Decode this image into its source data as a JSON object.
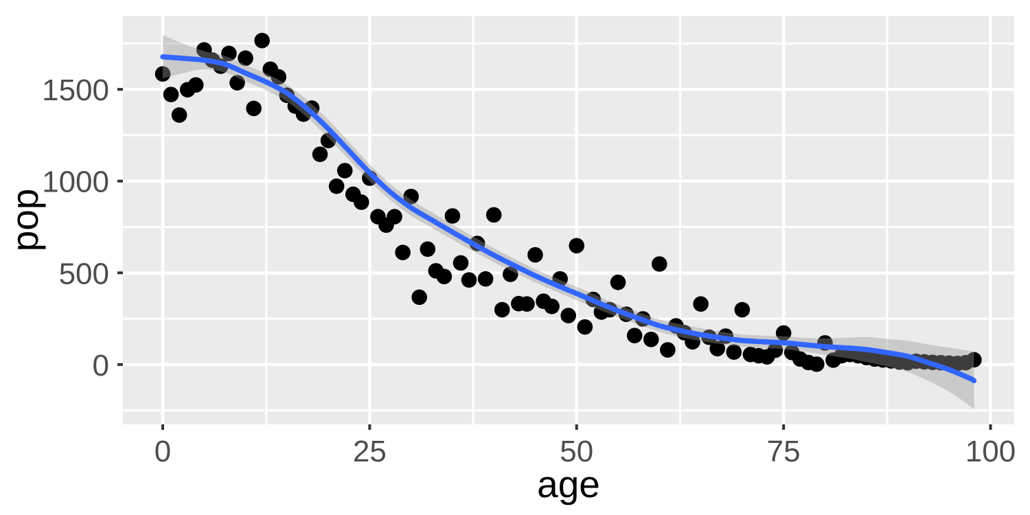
{
  "chart_data": {
    "type": "scatter",
    "title": "",
    "xlabel": "age",
    "ylabel": "pop",
    "legend": "none",
    "grid": "on",
    "xlim": [
      -4.81,
      102.86
    ],
    "ylim": [
      -326,
      1901
    ],
    "x_tick_values": [
      0,
      25,
      50,
      75,
      100
    ],
    "x_tick_labels": [
      "0",
      "25",
      "50",
      "75",
      "100"
    ],
    "y_tick_values": [
      0,
      500,
      1000,
      1500
    ],
    "y_tick_labels": [
      "0",
      "500",
      "1000",
      "1500"
    ],
    "x_minor_values": [
      12.5,
      37.5,
      62.5,
      87.5
    ],
    "y_minor_values": [
      -250,
      250,
      750,
      1250,
      1750
    ],
    "points": [
      [
        0,
        1584
      ],
      [
        1,
        1472
      ],
      [
        2,
        1360
      ],
      [
        3,
        1498
      ],
      [
        4,
        1524
      ],
      [
        5,
        1715
      ],
      [
        6,
        1659
      ],
      [
        7,
        1626
      ],
      [
        8,
        1696
      ],
      [
        9,
        1536
      ],
      [
        10,
        1670
      ],
      [
        11,
        1396
      ],
      [
        12,
        1766
      ],
      [
        13,
        1610
      ],
      [
        14,
        1568
      ],
      [
        15,
        1468
      ],
      [
        16,
        1409
      ],
      [
        17,
        1365
      ],
      [
        18,
        1398
      ],
      [
        19,
        1146
      ],
      [
        20,
        1221
      ],
      [
        21,
        972
      ],
      [
        22,
        1057
      ],
      [
        23,
        928
      ],
      [
        24,
        885
      ],
      [
        25,
        1016
      ],
      [
        26,
        806
      ],
      [
        27,
        760
      ],
      [
        28,
        806
      ],
      [
        29,
        611
      ],
      [
        30,
        916
      ],
      [
        31,
        367
      ],
      [
        32,
        629
      ],
      [
        33,
        511
      ],
      [
        34,
        480
      ],
      [
        35,
        810
      ],
      [
        36,
        554
      ],
      [
        37,
        461
      ],
      [
        38,
        660
      ],
      [
        39,
        467
      ],
      [
        40,
        816
      ],
      [
        41,
        299
      ],
      [
        42,
        492
      ],
      [
        43,
        332
      ],
      [
        44,
        330
      ],
      [
        45,
        598
      ],
      [
        46,
        345
      ],
      [
        47,
        317
      ],
      [
        48,
        467
      ],
      [
        49,
        267
      ],
      [
        50,
        648
      ],
      [
        51,
        205
      ],
      [
        52,
        355
      ],
      [
        53,
        286
      ],
      [
        54,
        299
      ],
      [
        55,
        448
      ],
      [
        56,
        274
      ],
      [
        57,
        158
      ],
      [
        58,
        249
      ],
      [
        59,
        137
      ],
      [
        60,
        548
      ],
      [
        61,
        80
      ],
      [
        62,
        211
      ],
      [
        63,
        174
      ],
      [
        64,
        124
      ],
      [
        65,
        330
      ],
      [
        66,
        149
      ],
      [
        67,
        87
      ],
      [
        68,
        155
      ],
      [
        69,
        68
      ],
      [
        70,
        299
      ],
      [
        71,
        55
      ],
      [
        72,
        48
      ],
      [
        73,
        42
      ],
      [
        74,
        78
      ],
      [
        75,
        172
      ],
      [
        76,
        66
      ],
      [
        77,
        30
      ],
      [
        78,
        11
      ],
      [
        79,
        2
      ],
      [
        80,
        118
      ],
      [
        81,
        24
      ],
      [
        82,
        48
      ],
      [
        83,
        55
      ],
      [
        84,
        48
      ],
      [
        85,
        38
      ],
      [
        86,
        30
      ],
      [
        87,
        25
      ],
      [
        88,
        20
      ],
      [
        89,
        14
      ],
      [
        90,
        10
      ],
      [
        91,
        18
      ],
      [
        92,
        15
      ],
      [
        93,
        12
      ],
      [
        94,
        10
      ],
      [
        95,
        8
      ],
      [
        96,
        6
      ],
      [
        97,
        10
      ],
      [
        98,
        26
      ]
    ],
    "smooth_line": [
      [
        0,
        1677
      ],
      [
        2.5,
        1669
      ],
      [
        5,
        1659
      ],
      [
        7.5,
        1637
      ],
      [
        10,
        1589
      ],
      [
        12.5,
        1540
      ],
      [
        15,
        1480
      ],
      [
        17.5,
        1392
      ],
      [
        20,
        1285
      ],
      [
        22.5,
        1165
      ],
      [
        25,
        1045
      ],
      [
        27.5,
        940
      ],
      [
        30,
        855
      ],
      [
        32.5,
        788
      ],
      [
        35,
        722
      ],
      [
        37.5,
        658
      ],
      [
        40,
        596
      ],
      [
        42.5,
        539
      ],
      [
        45,
        484
      ],
      [
        47.5,
        434
      ],
      [
        50,
        387
      ],
      [
        52.5,
        339
      ],
      [
        55,
        293
      ],
      [
        57.5,
        251
      ],
      [
        60,
        212
      ],
      [
        62.5,
        185
      ],
      [
        65,
        163
      ],
      [
        67.5,
        145
      ],
      [
        70,
        131
      ],
      [
        72.5,
        124
      ],
      [
        75,
        119
      ],
      [
        77.5,
        108
      ],
      [
        80,
        98
      ],
      [
        82.5,
        91
      ],
      [
        85,
        82
      ],
      [
        87.5,
        65
      ],
      [
        90,
        45
      ],
      [
        92.5,
        10
      ],
      [
        95,
        -28
      ],
      [
        97.5,
        -75
      ],
      [
        98,
        -88
      ]
    ],
    "ci_band": [
      [
        0,
        1559,
        1795
      ],
      [
        2.5,
        1589,
        1749
      ],
      [
        5,
        1609,
        1709
      ],
      [
        7.5,
        1592,
        1682
      ],
      [
        10,
        1544,
        1634
      ],
      [
        12.5,
        1494,
        1586
      ],
      [
        15,
        1434,
        1526
      ],
      [
        17.5,
        1344,
        1440
      ],
      [
        20,
        1235,
        1335
      ],
      [
        22.5,
        1117,
        1213
      ],
      [
        25,
        999,
        1091
      ],
      [
        27.5,
        896,
        984
      ],
      [
        30,
        812,
        898
      ],
      [
        32.5,
        746,
        830
      ],
      [
        35,
        681,
        763
      ],
      [
        37.5,
        618,
        698
      ],
      [
        40,
        558,
        634
      ],
      [
        42.5,
        502,
        576
      ],
      [
        45,
        448,
        520
      ],
      [
        47.5,
        398,
        470
      ],
      [
        50,
        350,
        424
      ],
      [
        52.5,
        303,
        375
      ],
      [
        55,
        258,
        328
      ],
      [
        57.5,
        217,
        285
      ],
      [
        60,
        178,
        246
      ],
      [
        62.5,
        150,
        220
      ],
      [
        65,
        128,
        198
      ],
      [
        67.5,
        111,
        179
      ],
      [
        70,
        98,
        164
      ],
      [
        72.5,
        90,
        158
      ],
      [
        75,
        84,
        154
      ],
      [
        77.5,
        70,
        146
      ],
      [
        80,
        53,
        143
      ],
      [
        82.5,
        36,
        146
      ],
      [
        85,
        14,
        150
      ],
      [
        87.5,
        -10,
        140
      ],
      [
        90,
        -40,
        130
      ],
      [
        92.5,
        -90,
        110
      ],
      [
        95,
        -148,
        92
      ],
      [
        97.5,
        -225,
        75
      ],
      [
        98,
        -246,
        70
      ]
    ],
    "colors": {
      "background": "#FFFFFF",
      "panel": "#EBEBEB",
      "grid_major": "#FFFFFF",
      "grid_minor": "#FFFFFF",
      "point": "#000000",
      "smooth_line": "#3366FF",
      "ci_band": "#999999",
      "tick_mark": "#333333",
      "tick_label": "#4D4D4D",
      "axis_title": "#000000"
    }
  }
}
